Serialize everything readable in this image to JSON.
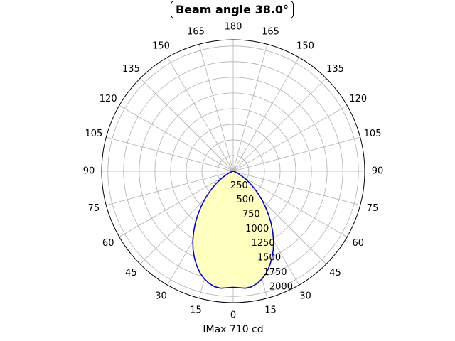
{
  "chart_data": {
    "type": "polar-line",
    "title": "Beam angle 38.0°",
    "xlabel": "IMax 710 cd",
    "angle_ticks_left": [
      "0",
      "15",
      "30",
      "45",
      "60",
      "75",
      "90",
      "105",
      "120",
      "135",
      "150",
      "165",
      "180"
    ],
    "angle_ticks_right": [
      "15",
      "30",
      "45",
      "60",
      "75",
      "90",
      "105",
      "120",
      "135",
      "150",
      "165"
    ],
    "angle_tick_values": [
      0,
      15,
      30,
      45,
      60,
      75,
      90,
      105,
      120,
      135,
      150,
      165,
      180
    ],
    "radial_ticks": [
      250,
      500,
      750,
      1000,
      1250,
      1500,
      1750,
      2000
    ],
    "rlim": [
      0,
      2100
    ],
    "grid": true,
    "colors": {
      "line": "#0000ee",
      "fill": "#ffffc0",
      "grid": "#b0b0b0"
    },
    "series": [
      {
        "angle_deg": [
          0,
          3,
          6,
          9,
          12,
          15,
          18,
          21,
          24,
          27,
          30,
          33,
          36,
          39,
          42,
          45,
          48,
          51,
          54,
          57,
          60,
          65,
          70,
          75,
          80,
          85,
          90
        ],
        "intensity": [
          1855,
          1865,
          1880,
          1870,
          1835,
          1780,
          1710,
          1620,
          1520,
          1410,
          1290,
          1160,
          1030,
          900,
          770,
          650,
          535,
          430,
          335,
          250,
          180,
          95,
          40,
          12,
          3,
          0,
          0
        ]
      }
    ]
  }
}
